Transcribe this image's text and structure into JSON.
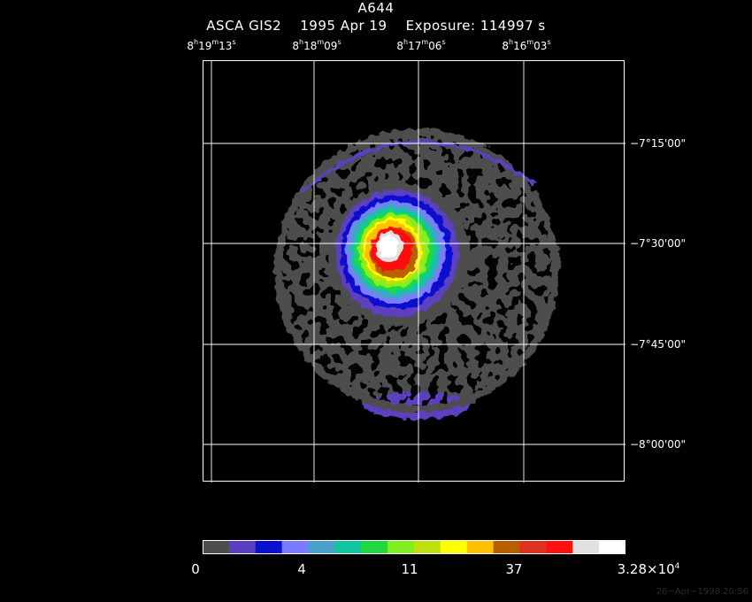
{
  "header": {
    "title": "A644",
    "subtitle": "ASCA GIS2    1995 Apr 19    Exposure: 114997 s"
  },
  "ra_labels": [
    {
      "h": "8",
      "hs": "h",
      "m": "19",
      "ms": "m",
      "s": "13",
      "ss": "s"
    },
    {
      "h": "8",
      "hs": "h",
      "m": "18",
      "ms": "m",
      "s": "09",
      "ss": "s"
    },
    {
      "h": "8",
      "hs": "h",
      "m": "17",
      "ms": "m",
      "s": "06",
      "ss": "s"
    },
    {
      "h": "8",
      "hs": "h",
      "m": "16",
      "ms": "m",
      "s": "03",
      "ss": "s"
    }
  ],
  "dec_labels": [
    "−7°15'00\"",
    "−7°30'00\"",
    "−7°45'00\"",
    "−8°00'00\""
  ],
  "colorbar": {
    "colors": [
      "#4d4d4d",
      "#5b3fc0",
      "#0a10d0",
      "#7b7bff",
      "#4aa0c8",
      "#10c8a0",
      "#20d840",
      "#80f020",
      "#c0e010",
      "#ffff00",
      "#ffc000",
      "#b86000",
      "#e03020",
      "#ff1010",
      "#e0e0e0",
      "#ffffff"
    ],
    "labels": {
      "l0": "0",
      "l1": "4",
      "l2": "11",
      "l3": "37",
      "l4_base": "3.28×10",
      "l4_exp": "4"
    }
  },
  "stamp": "26−Apr−1998 20:56"
}
